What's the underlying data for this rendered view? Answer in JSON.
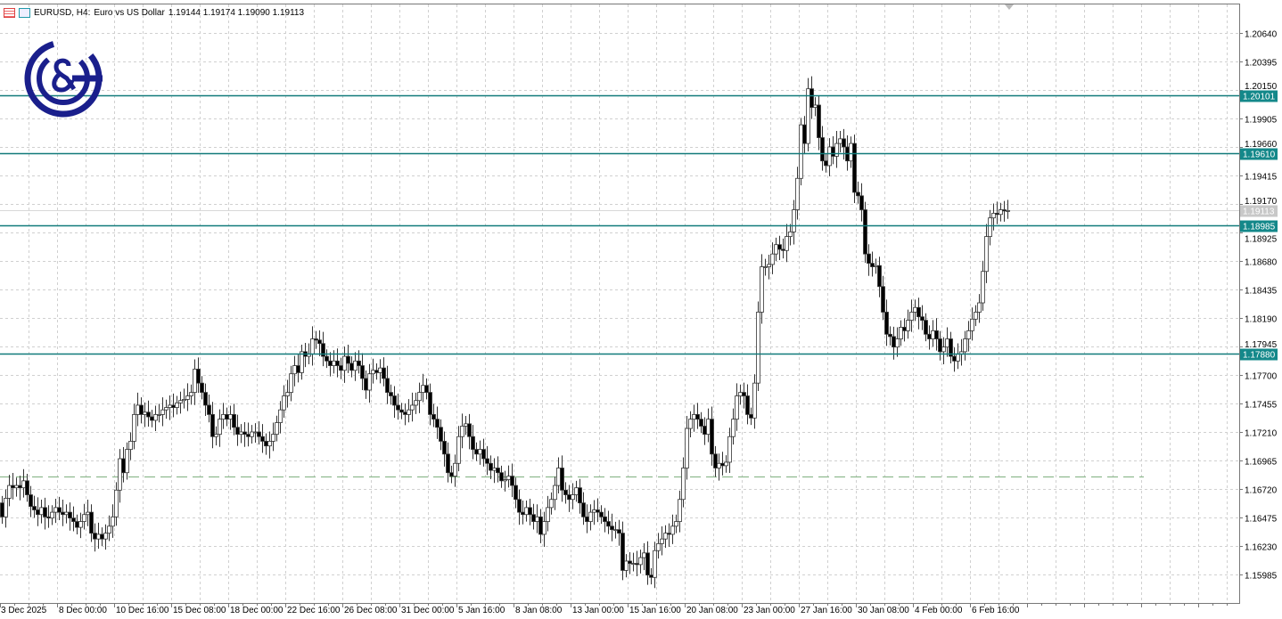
{
  "header": {
    "symbol": "EURUSD, H4:",
    "description": "Euro vs US Dollar",
    "ohlc": "1.19144 1.19174 1.19090 1.19113"
  },
  "logo": {
    "text": "C&G",
    "color": "#1a1f8c"
  },
  "colors": {
    "level_line": "#117a7a",
    "level_label_bg": "#14888a",
    "current_label_bg": "#c8c8c8",
    "dashed_line": "#7fb07f",
    "grid": "#d0d0d0",
    "candle_outline": "#333333",
    "bear_body": "#000000",
    "bull_body": "#ffffff"
  },
  "chart_data": {
    "type": "candlestick",
    "symbol": "EURUSD",
    "timeframe": "H4",
    "ylim": [
      1.1575,
      1.2093
    ],
    "grid": true,
    "y_ticks": [
      "1.20640",
      "1.20395",
      "1.20150",
      "1.19905",
      "1.19660",
      "1.19415",
      "1.19170",
      "1.18925",
      "1.18680",
      "1.18435",
      "1.18190",
      "1.17945",
      "1.17700",
      "1.17455",
      "1.17210",
      "1.16965",
      "1.16720",
      "1.16475",
      "1.16230",
      "1.15985"
    ],
    "x_ticks": [
      "3 Dec 2025",
      "8 Dec 00:00",
      "10 Dec 16:00",
      "15 Dec 08:00",
      "18 Dec 00:00",
      "22 Dec 16:00",
      "26 Dec 08:00",
      "31 Dec 00:00",
      "5 Jan 16:00",
      "8 Jan 08:00",
      "13 Jan 00:00",
      "15 Jan 16:00",
      "20 Jan 08:00",
      "23 Jan 00:00",
      "27 Jan 16:00",
      "30 Jan 08:00",
      "4 Feb 00:00",
      "6 Feb 16:00"
    ],
    "levels": [
      {
        "label": "1.20101",
        "value": 1.20101
      },
      {
        "label": "1.19610",
        "value": 1.1961
      },
      {
        "label": "1.18985",
        "value": 1.18985
      },
      {
        "label": "1.17880",
        "value": 1.1788
      }
    ],
    "current_price": {
      "label": "1.19113",
      "value": 1.19113
    },
    "dashed_level": 1.1683,
    "first_open": 1.166,
    "closes": [
      1.1648,
      1.1664,
      1.1675,
      1.1673,
      1.1675,
      1.1673,
      1.1679,
      1.1667,
      1.1657,
      1.1654,
      1.165,
      1.1656,
      1.1648,
      1.1647,
      1.1652,
      1.1656,
      1.1652,
      1.165,
      1.1652,
      1.1647,
      1.1644,
      1.1639,
      1.1644,
      1.165,
      1.1652,
      1.1634,
      1.1629,
      1.1633,
      1.1629,
      1.1634,
      1.164,
      1.1648,
      1.1671,
      1.1698,
      1.1686,
      1.1706,
      1.1713,
      1.1736,
      1.1744,
      1.1736,
      1.1738,
      1.1734,
      1.1731,
      1.1736,
      1.1736,
      1.174,
      1.1742,
      1.1744,
      1.1742,
      1.1746,
      1.1748,
      1.1749,
      1.1752,
      1.1755,
      1.1775,
      1.1763,
      1.1755,
      1.1744,
      1.1736,
      1.1717,
      1.1719,
      1.1732,
      1.1736,
      1.1732,
      1.1736,
      1.1725,
      1.1719,
      1.1721,
      1.1719,
      1.1717,
      1.1721,
      1.1721,
      1.1717,
      1.1713,
      1.1709,
      1.1713,
      1.1719,
      1.1729,
      1.174,
      1.1752,
      1.1755,
      1.1771,
      1.1778,
      1.1772,
      1.179,
      1.1786,
      1.1788,
      1.1801,
      1.18,
      1.1797,
      1.1786,
      1.1782,
      1.1778,
      1.1782,
      1.1778,
      1.1774,
      1.1786,
      1.178,
      1.1774,
      1.1782,
      1.1778,
      1.1767,
      1.1757,
      1.1771,
      1.1774,
      1.1772,
      1.1776,
      1.1767,
      1.1755,
      1.1752,
      1.1744,
      1.174,
      1.1738,
      1.1736,
      1.174,
      1.1744,
      1.1748,
      1.1755,
      1.1761,
      1.1755,
      1.1736,
      1.1732,
      1.1725,
      1.1713,
      1.1702,
      1.1686,
      1.1683,
      1.1694,
      1.1717,
      1.1726,
      1.1728,
      1.1717,
      1.1706,
      1.1702,
      1.1706,
      1.1698,
      1.1694,
      1.1688,
      1.169,
      1.1686,
      1.1679,
      1.168,
      1.1683,
      1.1675,
      1.1663,
      1.1652,
      1.165,
      1.1656,
      1.165,
      1.1644,
      1.1648,
      1.1633,
      1.1644,
      1.1656,
      1.1663,
      1.1675,
      1.169,
      1.1671,
      1.1667,
      1.1663,
      1.1667,
      1.1673,
      1.166,
      1.1648,
      1.1644,
      1.1652,
      1.1654,
      1.1652,
      1.1648,
      1.1644,
      1.164,
      1.1637,
      1.1637,
      1.1634,
      1.1602,
      1.161,
      1.1608,
      1.1608,
      1.1607,
      1.1613,
      1.1617,
      1.1598,
      1.1596,
      1.1619,
      1.1625,
      1.1629,
      1.1634,
      1.1633,
      1.164,
      1.1644,
      1.1663,
      1.169,
      1.1724,
      1.1732,
      1.1736,
      1.1732,
      1.1726,
      1.1719,
      1.1732,
      1.1702,
      1.169,
      1.1694,
      1.1692,
      1.1695,
      1.1717,
      1.1732,
      1.1752,
      1.1755,
      1.1752,
      1.1736,
      1.1733,
      1.1763,
      1.1824,
      1.1863,
      1.1863,
      1.1865,
      1.1874,
      1.1882,
      1.1878,
      1.1877,
      1.1889,
      1.1893,
      1.1912,
      1.1939,
      1.1985,
      1.1969,
      1.2016,
      1.2,
      1.2002,
      1.1974,
      1.1954,
      1.195,
      1.1966,
      1.1958,
      1.1969,
      1.1973,
      1.1966,
      1.1954,
      1.1969,
      1.1927,
      1.1924,
      1.1912,
      1.1874,
      1.1866,
      1.1863,
      1.1864,
      1.1846,
      1.1824,
      1.1805,
      1.1803,
      1.1794,
      1.1801,
      1.1811,
      1.1808,
      1.1817,
      1.1824,
      1.1828,
      1.182,
      1.1817,
      1.1805,
      1.1801,
      1.1808,
      1.1801,
      1.179,
      1.1794,
      1.1801,
      1.1786,
      1.1782,
      1.1788,
      1.179,
      1.1801,
      1.1808,
      1.1818,
      1.1824,
      1.1832,
      1.1859,
      1.1889,
      1.1905,
      1.1909,
      1.1908,
      1.1912,
      1.1911,
      1.19113
    ]
  }
}
